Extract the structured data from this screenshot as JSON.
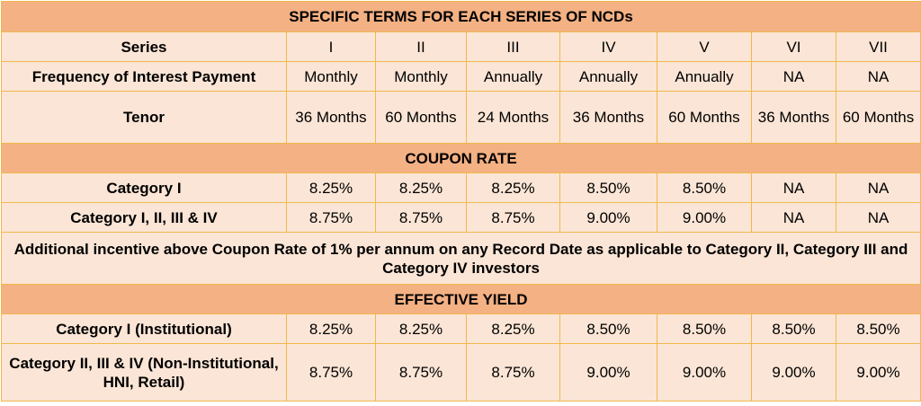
{
  "table": {
    "title": "SPECIFIC TERMS FOR EACH SERIES OF NCDs",
    "header": {
      "label": "Series",
      "cells": [
        "I",
        "II",
        "III",
        "IV",
        "V",
        "VI",
        "VII"
      ]
    },
    "rows": [
      {
        "label": "Frequency of Interest Payment",
        "cells": [
          "Monthly",
          "Monthly",
          "Annually",
          "Annually",
          "Annually",
          "NA",
          "NA"
        ]
      },
      {
        "label": "Tenor",
        "cells": [
          "36 Months",
          "60 Months",
          "24 Months",
          "36 Months",
          "60 Months",
          "36 Months",
          "60 Months"
        ]
      }
    ],
    "sections": [
      {
        "title": "COUPON RATE",
        "rows": [
          {
            "label": "Category I",
            "cells": [
              "8.25%",
              "8.25%",
              "8.25%",
              "8.50%",
              "8.50%",
              "NA",
              "NA"
            ]
          },
          {
            "label": "Category I, II, III & IV",
            "cells": [
              "8.75%",
              "8.75%",
              "8.75%",
              "9.00%",
              "9.00%",
              "NA",
              "NA"
            ]
          }
        ],
        "note": "Additional incentive above Coupon Rate of 1% per annum on any Record Date as applicable to Category II, Category III and Category IV investors"
      },
      {
        "title": "EFFECTIVE YIELD",
        "rows": [
          {
            "label": "Category I (Institutional)",
            "cells": [
              "8.25%",
              "8.25%",
              "8.25%",
              "8.50%",
              "8.50%",
              "8.50%",
              "8.50%"
            ]
          },
          {
            "label": "Category II, III & IV (Non-Institutional, HNI, Retail)",
            "cells": [
              "8.75%",
              "8.75%",
              "8.75%",
              "9.00%",
              "9.00%",
              "9.00%",
              "9.00%"
            ]
          }
        ]
      }
    ]
  }
}
